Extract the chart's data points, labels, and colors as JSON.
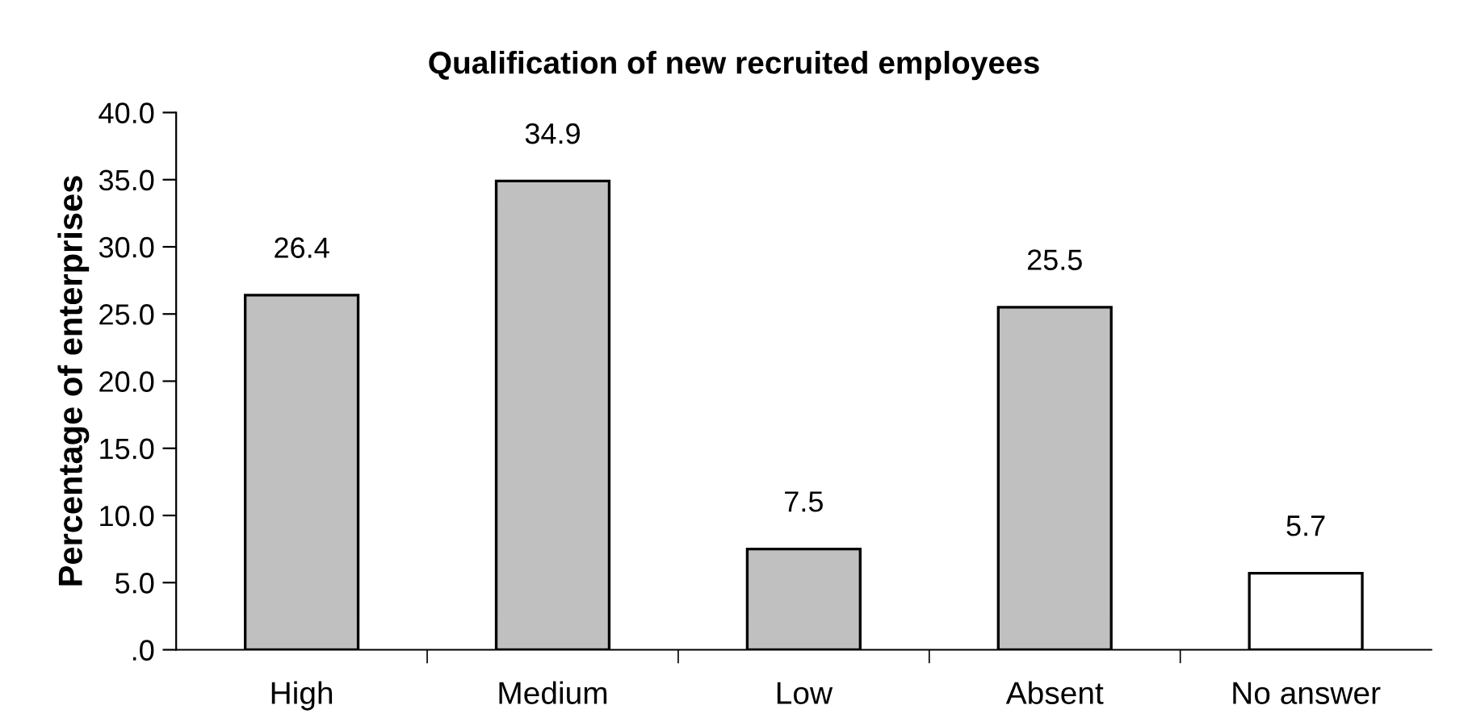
{
  "chart_data": {
    "type": "bar",
    "title": "Qualification of new recruited employees",
    "ylabel": "Percentage of enterprises",
    "categories": [
      "High",
      "Medium",
      "Low",
      "Absent",
      "No answer"
    ],
    "values": [
      26.4,
      34.9,
      7.5,
      25.5,
      5.7
    ],
    "value_labels": [
      "26.4",
      "34.9",
      "7.5",
      "25.5",
      "5.7"
    ],
    "colors": [
      "#c0c0c0",
      "#c0c0c0",
      "#c0c0c0",
      "#c0c0c0",
      "#ffffff"
    ],
    "ylim": [
      0,
      40
    ],
    "yticks": [
      {
        "value": 0,
        "label": ".0"
      },
      {
        "value": 5,
        "label": "5.0"
      },
      {
        "value": 10,
        "label": "10.0"
      },
      {
        "value": 15,
        "label": "15.0"
      },
      {
        "value": 20,
        "label": "20.0"
      },
      {
        "value": 25,
        "label": "25.0"
      },
      {
        "value": 30,
        "label": "30.0"
      },
      {
        "value": 35,
        "label": "35.0"
      },
      {
        "value": 40,
        "label": "40.0"
      }
    ],
    "grid": false,
    "legend": false
  }
}
